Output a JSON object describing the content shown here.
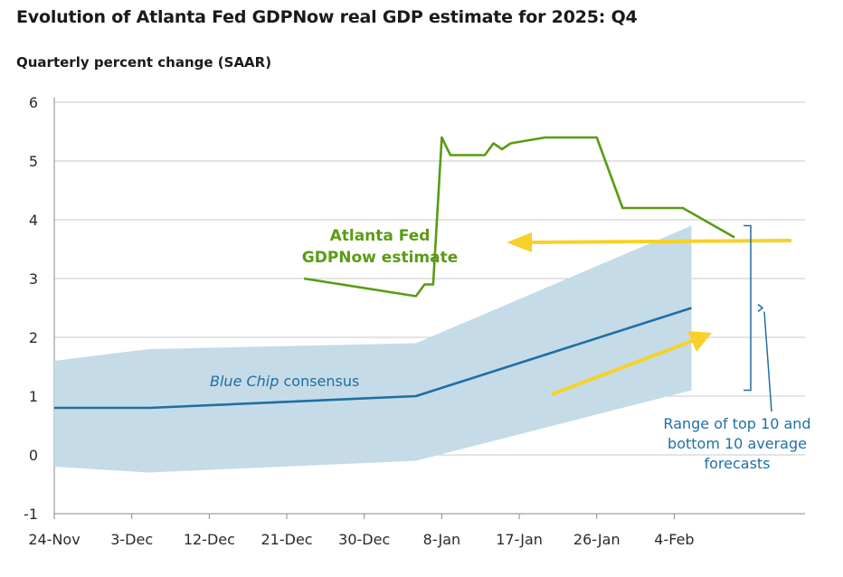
{
  "title": "Evolution of Atlanta Fed GDPNow real GDP estimate for 2025: Q4",
  "subtitle": "Quarterly percent change (SAAR)",
  "colors": {
    "gdpnow": "#5a9b14",
    "consensus": "#1f6fa3",
    "band": "#c5dbe7",
    "arrow": "#f7d12a",
    "grid": "#c9c9c9"
  },
  "chart_data": {
    "type": "line",
    "title": "Evolution of Atlanta Fed GDPNow real GDP estimate for 2025: Q4",
    "ylabel": "Quarterly percent change (SAAR)",
    "xlabel": "",
    "ylim": [
      -1,
      6
    ],
    "yticks": [
      "-1",
      "0",
      "1",
      "2",
      "3",
      "4",
      "5",
      "6"
    ],
    "xticks": [
      "24-Nov",
      "3-Dec",
      "12-Dec",
      "21-Dec",
      "30-Dec",
      "8-Jan",
      "17-Jan",
      "26-Jan",
      "4-Feb"
    ],
    "grid": true,
    "series": [
      {
        "name": "GDPNow",
        "points": [
          [
            "2025-12-23",
            3.0
          ],
          [
            "2026-01-05",
            2.7
          ],
          [
            "2026-01-06",
            2.9
          ],
          [
            "2026-01-07",
            2.9
          ],
          [
            "2026-01-08",
            5.4
          ],
          [
            "2026-01-09",
            5.1
          ],
          [
            "2026-01-13",
            5.1
          ],
          [
            "2026-01-14",
            5.3
          ],
          [
            "2026-01-15",
            5.2
          ],
          [
            "2026-01-16",
            5.3
          ],
          [
            "2026-01-20",
            5.4
          ],
          [
            "2026-01-26",
            5.4
          ],
          [
            "2026-01-29",
            4.2
          ],
          [
            "2026-02-05",
            4.2
          ],
          [
            "2026-02-11",
            3.7
          ]
        ]
      },
      {
        "name": "Blue Chip consensus",
        "points": [
          [
            "2025-11-24",
            0.8
          ],
          [
            "2025-12-05",
            0.8
          ],
          [
            "2026-01-05",
            1.0
          ],
          [
            "2026-02-06",
            2.5
          ]
        ]
      }
    ],
    "band": {
      "name": "Range of top 10 and bottom 10 average forecasts",
      "points": [
        [
          "2025-11-24",
          -0.2,
          1.6
        ],
        [
          "2025-12-05",
          -0.3,
          1.8
        ],
        [
          "2026-01-05",
          -0.1,
          1.9
        ],
        [
          "2026-02-06",
          1.1,
          3.9
        ]
      ]
    },
    "annotations": {
      "gdpnow_line1": "Atlanta Fed",
      "gdpnow_line2": "GDPNow estimate",
      "consensus_blue": "Blue Chip",
      "consensus_rest": " consensus",
      "range_line1": "Range of top 10 and",
      "range_line2": "bottom 10 average",
      "range_line3": "forecasts"
    }
  }
}
